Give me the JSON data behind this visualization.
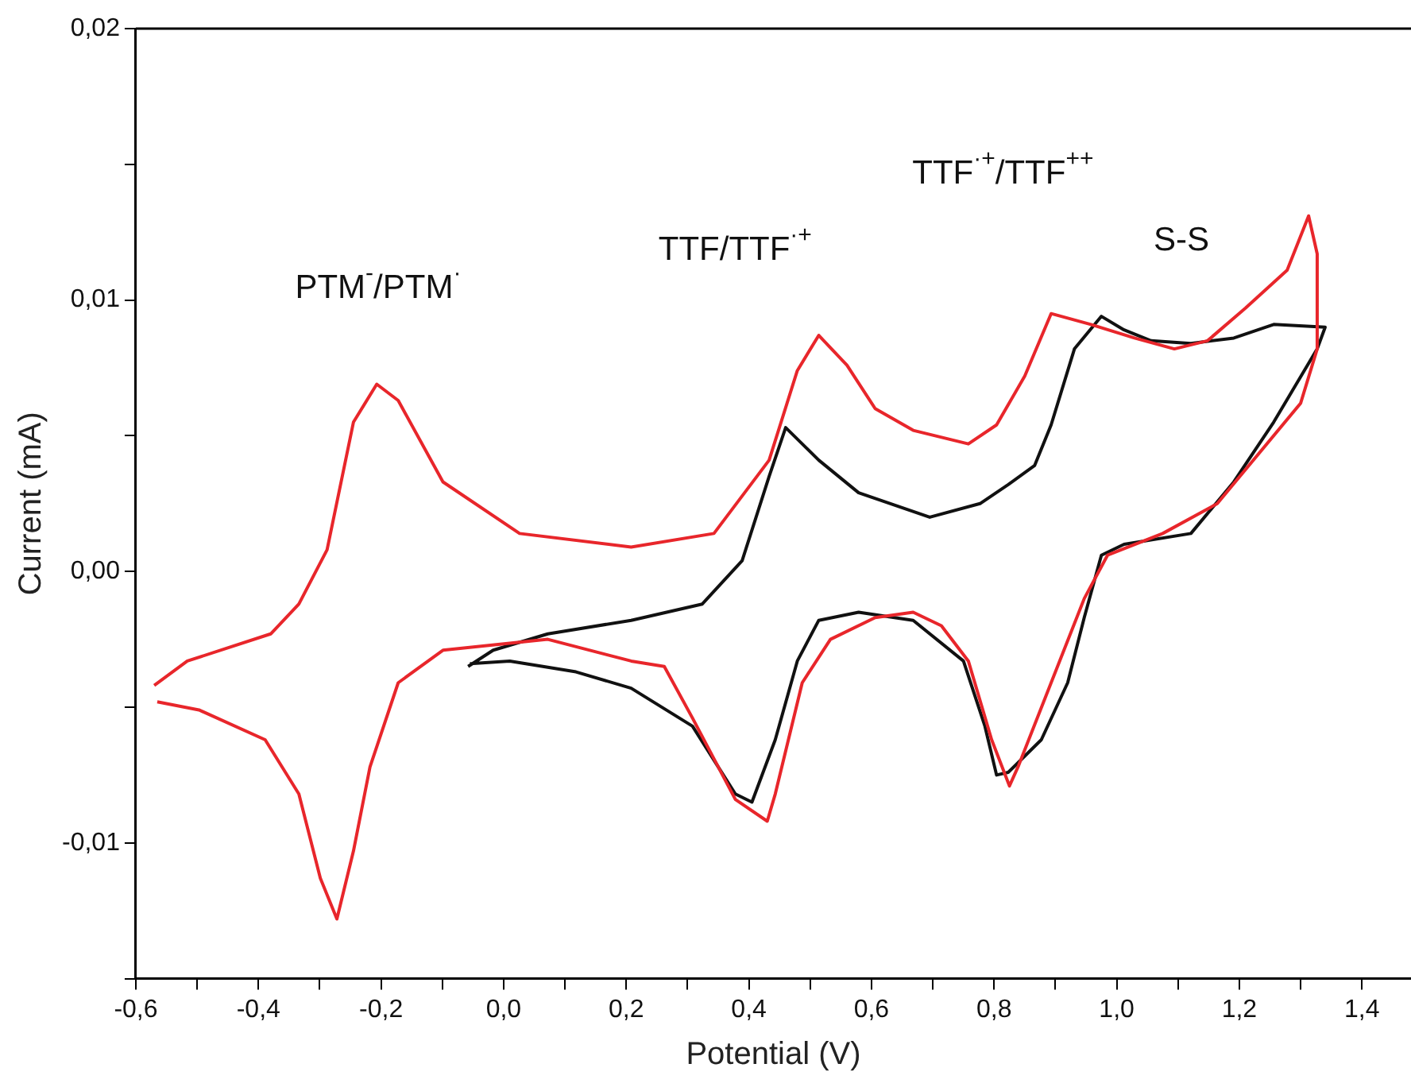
{
  "chart_data": {
    "type": "line",
    "xlabel": "Potential (V)",
    "ylabel": "Current (mA)",
    "xlim": [
      -0.6,
      1.48
    ],
    "ylim": [
      -0.015,
      0.02
    ],
    "xticks": [
      {
        "value": -0.6,
        "label": "-0,6"
      },
      {
        "value": -0.5,
        "label": null
      },
      {
        "value": -0.4,
        "label": "-0,4"
      },
      {
        "value": -0.3,
        "label": null
      },
      {
        "value": -0.2,
        "label": "-0,2"
      },
      {
        "value": -0.1,
        "label": null
      },
      {
        "value": 0,
        "label": "0,0"
      },
      {
        "value": 0.1,
        "label": null
      },
      {
        "value": 0.2,
        "label": "0,2"
      },
      {
        "value": 0.3,
        "label": null
      },
      {
        "value": 0.4,
        "label": "0,4"
      },
      {
        "value": 0.5,
        "label": null
      },
      {
        "value": 0.6,
        "label": "0,6"
      },
      {
        "value": 0.7,
        "label": null
      },
      {
        "value": 0.8,
        "label": "0,8"
      },
      {
        "value": 0.9,
        "label": null
      },
      {
        "value": 1.0,
        "label": "1,0"
      },
      {
        "value": 1.1,
        "label": null
      },
      {
        "value": 1.2,
        "label": "1,2"
      },
      {
        "value": 1.3,
        "label": null
      },
      {
        "value": 1.4,
        "label": "1,4"
      }
    ],
    "yticks": [
      {
        "value": -0.015,
        "label": null
      },
      {
        "value": -0.01,
        "label": "-0,01"
      },
      {
        "value": -0.005,
        "label": null
      },
      {
        "value": 0,
        "label": "0,00"
      },
      {
        "value": 0.005,
        "label": null
      },
      {
        "value": 0.01,
        "label": "0,01"
      },
      {
        "value": 0.015,
        "label": null
      },
      {
        "value": 0.02,
        "label": "0,02"
      }
    ],
    "grid": false,
    "legend": false,
    "marker": "none",
    "annotations": [
      "PTM$^{-}$/PTM$^{·}$",
      "TTF/TTF$^{·+}$",
      "TTF$^{·+}$/TTF$^{++}$",
      "S-S"
    ],
    "series": [
      {
        "color": "#e8262b",
        "x": [
          -0.57,
          -0.516,
          -0.38,
          -0.334,
          -0.288,
          -0.245,
          -0.207,
          -0.172,
          -0.099,
          0.026,
          0.208,
          0.343,
          0.433,
          0.479,
          0.514,
          0.56,
          0.606,
          0.668,
          0.758,
          0.804,
          0.85,
          0.893,
          0.958,
          1.029,
          1.094,
          1.148,
          1.21,
          1.278,
          1.313,
          1.327,
          1.327,
          1.3,
          1.164,
          1.075,
          0.985,
          0.947,
          0.893,
          0.839,
          0.825,
          0.796,
          0.758,
          0.714,
          0.668,
          0.606,
          0.533,
          0.487,
          0.443,
          0.43,
          0.378,
          0.308,
          0.262,
          0.208,
          0.072,
          -0.099,
          -0.172,
          -0.218,
          -0.245,
          -0.272,
          -0.299,
          -0.334,
          -0.389,
          -0.497,
          -0.565
        ],
        "values": [
          -0.0042,
          -0.0033,
          -0.0023,
          -0.0012,
          0.0008,
          0.0055,
          0.0069,
          0.0063,
          0.0033,
          0.0014,
          0.0009,
          0.0014,
          0.0041,
          0.0074,
          0.0087,
          0.0076,
          0.006,
          0.0052,
          0.0047,
          0.0054,
          0.0072,
          0.0095,
          0.0091,
          0.0086,
          0.0082,
          0.0085,
          0.0097,
          0.0111,
          0.0131,
          0.0117,
          0.0082,
          0.0062,
          0.0025,
          0.0014,
          0.0006,
          -0.001,
          -0.0041,
          -0.0072,
          -0.0079,
          -0.0062,
          -0.0033,
          -0.002,
          -0.0015,
          -0.0017,
          -0.0025,
          -0.0041,
          -0.0082,
          -0.0092,
          -0.0084,
          -0.0054,
          -0.0035,
          -0.0033,
          -0.0025,
          -0.0029,
          -0.0041,
          -0.0072,
          -0.0103,
          -0.0128,
          -0.0113,
          -0.0082,
          -0.0062,
          -0.0051,
          -0.0048
        ]
      },
      {
        "color": "#111111",
        "x": [
          -0.058,
          -0.017,
          0.072,
          0.208,
          0.324,
          0.389,
          0.433,
          0.46,
          0.514,
          0.579,
          0.695,
          0.777,
          0.823,
          0.866,
          0.893,
          0.931,
          0.975,
          1.012,
          1.056,
          1.121,
          1.191,
          1.256,
          1.34,
          1.327,
          1.256,
          1.191,
          1.121,
          1.012,
          0.975,
          0.947,
          0.92,
          0.877,
          0.823,
          0.804,
          0.785,
          0.75,
          0.668,
          0.579,
          0.514,
          0.479,
          0.443,
          0.405,
          0.378,
          0.308,
          0.208,
          0.118,
          0.01,
          -0.055
        ],
        "values": [
          -0.0035,
          -0.0029,
          -0.0023,
          -0.0018,
          -0.0012,
          0.0004,
          0.0035,
          0.0053,
          0.0041,
          0.0029,
          0.002,
          0.0025,
          0.0032,
          0.0039,
          0.0054,
          0.0082,
          0.0094,
          0.0089,
          0.0085,
          0.0084,
          0.0086,
          0.0091,
          0.009,
          0.0082,
          0.0055,
          0.0033,
          0.0014,
          0.001,
          0.0006,
          -0.0017,
          -0.0041,
          -0.0062,
          -0.0074,
          -0.0075,
          -0.0057,
          -0.0033,
          -0.0018,
          -0.0015,
          -0.0018,
          -0.0033,
          -0.0062,
          -0.0085,
          -0.0082,
          -0.0057,
          -0.0043,
          -0.0037,
          -0.0033,
          -0.0034
        ]
      }
    ]
  }
}
